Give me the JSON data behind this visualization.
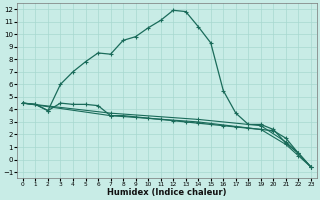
{
  "xlabel": "Humidex (Indice chaleur)",
  "background_color": "#c8ece6",
  "grid_color": "#a8d8d0",
  "line_color": "#1a6b5a",
  "xlim": [
    -0.5,
    23.5
  ],
  "ylim": [
    -1.5,
    12.5
  ],
  "xticks": [
    0,
    1,
    2,
    3,
    4,
    5,
    6,
    7,
    8,
    9,
    10,
    11,
    12,
    13,
    14,
    15,
    16,
    17,
    18,
    19,
    20,
    21,
    22,
    23
  ],
  "yticks": [
    -1,
    0,
    1,
    2,
    3,
    4,
    5,
    6,
    7,
    8,
    9,
    10,
    11,
    12
  ],
  "curve1_x": [
    0,
    1,
    2,
    3,
    4,
    5,
    6,
    7,
    8,
    9,
    10,
    11,
    12,
    13,
    14,
    15,
    16,
    17,
    18,
    19,
    20,
    21,
    22,
    23
  ],
  "curve1_y": [
    4.5,
    4.4,
    3.9,
    6.0,
    7.0,
    7.8,
    8.5,
    8.4,
    9.5,
    9.8,
    10.5,
    11.1,
    11.9,
    11.8,
    10.6,
    9.3,
    5.5,
    3.7,
    2.8,
    2.8,
    2.4,
    1.3,
    0.5,
    -0.6
  ],
  "curve2_x": [
    0,
    1,
    2,
    3,
    4,
    5,
    6,
    7,
    8,
    9,
    10,
    11,
    12,
    13,
    14,
    15,
    16,
    17,
    18,
    19,
    20,
    21,
    22,
    23
  ],
  "curve2_y": [
    4.5,
    4.4,
    3.9,
    4.5,
    4.4,
    4.4,
    4.3,
    3.5,
    3.5,
    3.4,
    3.3,
    3.2,
    3.1,
    3.0,
    2.9,
    2.8,
    2.7,
    2.6,
    2.5,
    2.4,
    2.3,
    1.7,
    0.5,
    -0.6
  ],
  "curve3_x": [
    0,
    7,
    14,
    19,
    21,
    22,
    23
  ],
  "curve3_y": [
    4.5,
    3.7,
    3.2,
    2.7,
    1.4,
    0.5,
    -0.6
  ],
  "curve4_x": [
    0,
    7,
    14,
    19,
    21,
    22,
    23
  ],
  "curve4_y": [
    4.5,
    3.5,
    3.0,
    2.4,
    1.2,
    0.3,
    -0.6
  ]
}
